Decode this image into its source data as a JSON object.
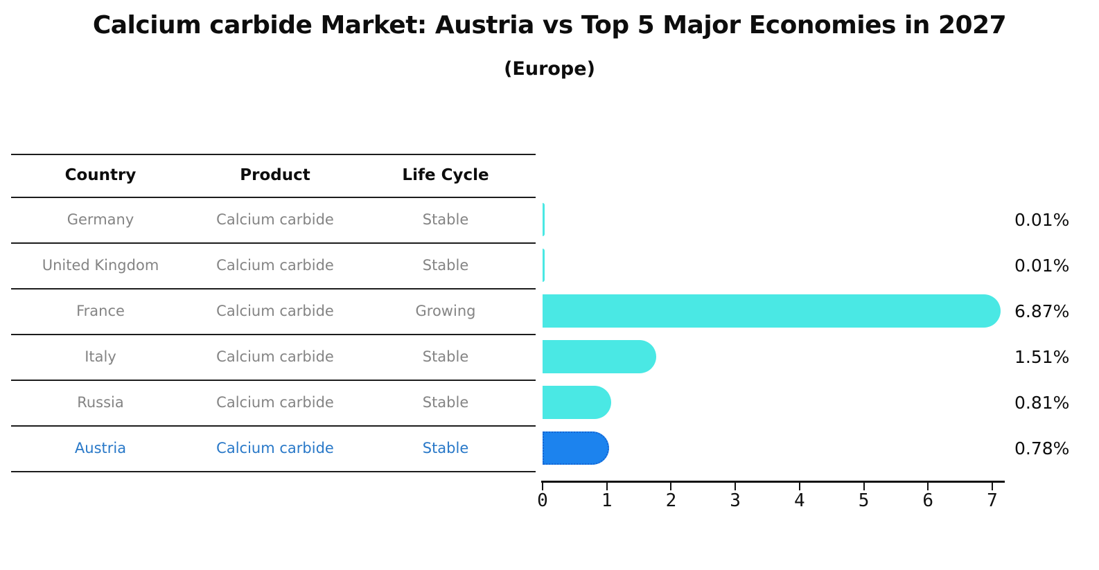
{
  "page": {
    "title": "Calcium carbide Market: Austria vs Top 5 Major Economies in 2027",
    "subtitle": "(Europe)"
  },
  "table": {
    "headers": [
      "Country",
      "Product",
      "Life Cycle"
    ],
    "text_color": "#848484",
    "highlight_color": "#2878C8",
    "rows": [
      {
        "country": "Germany",
        "product": "Calcium carbide",
        "life_cycle": "Stable",
        "highlighted": false
      },
      {
        "country": "United Kingdom",
        "product": "Calcium carbide",
        "life_cycle": "Stable",
        "highlighted": false
      },
      {
        "country": "France",
        "product": "Calcium carbide",
        "life_cycle": "Growing",
        "highlighted": false
      },
      {
        "country": "Italy",
        "product": "Calcium carbide",
        "life_cycle": "Stable",
        "highlighted": false
      },
      {
        "country": "Russia",
        "product": "Calcium carbide",
        "life_cycle": "Stable",
        "highlighted": false
      },
      {
        "country": "Austria",
        "product": "Calcium carbide",
        "life_cycle": "Stable",
        "highlighted": true
      }
    ]
  },
  "chart_data": {
    "type": "bar",
    "orientation": "horizontal",
    "title": "Calcium carbide Market: Austria vs Top 5 Major Economies in 2027",
    "subtitle": "(Europe)",
    "categories": [
      "Germany",
      "United Kingdom",
      "France",
      "Italy",
      "Russia",
      "Austria"
    ],
    "values": [
      0.01,
      0.01,
      6.87,
      1.51,
      0.81,
      0.78
    ],
    "value_labels": [
      "0.01%",
      "0.01%",
      "6.87%",
      "1.51%",
      "0.81%",
      "0.78%"
    ],
    "x_ticks": [
      0,
      1,
      2,
      3,
      4,
      5,
      6,
      7
    ],
    "xlim": [
      0,
      7.2
    ],
    "xlabel": "",
    "ylabel": "",
    "grid": false,
    "legend": "none",
    "bar_color": "#4AE8E4",
    "highlight_index": 5,
    "highlight_bar_color": "#1C83EE",
    "highlight_border_color": "#1565D2"
  }
}
